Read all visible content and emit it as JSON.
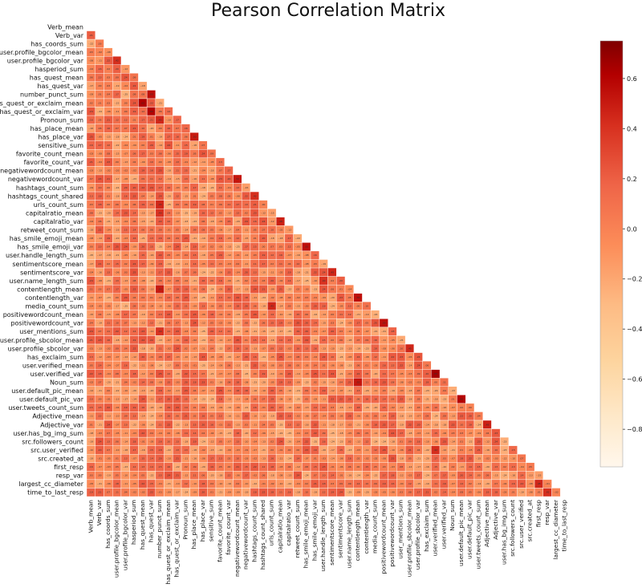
{
  "chart_data": {
    "type": "heatmap",
    "title": "Pearson Correlation Matrix",
    "mask": "upper-triangle",
    "annotated": true,
    "variables": [
      "Verb_mean",
      "Verb_var",
      "has_coords_sum",
      "user.profile_bgcolor_mean",
      "user.profile_bgcolor_var",
      "hasperiod_sum",
      "has_quest_mean",
      "has_quest_var",
      "number_punct_sum",
      "has_quest_or_exclaim_mean",
      "has_quest_or_exclaim_var",
      "Pronoun_sum",
      "has_place_mean",
      "has_place_var",
      "sensitive_sum",
      "favorite_count_mean",
      "favorite_count_var",
      "negativewordcount_mean",
      "negativewordcount_var",
      "hashtags_count_sum",
      "hashtags_count_shared",
      "urls_count_sum",
      "capitalratio_mean",
      "capitalratio_var",
      "retweet_count_sum",
      "has_smile_emoji_mean",
      "has_smile_emoji_var",
      "user.handle_length_sum",
      "sentimentscore_mean",
      "sentimentscore_var",
      "user.name_length_sum",
      "contentlength_mean",
      "contentlength_var",
      "media_count_sum",
      "positivewordcount_mean",
      "positivewordcount_var",
      "user_mentions_sum",
      "user.profile_sbcolor_mean",
      "user.profile_sbcolor_var",
      "has_exclaim_sum",
      "user.verified_mean",
      "user.verified_var",
      "Noun_sum",
      "user.default_pic_mean",
      "user.default_pic_var",
      "user.tweets_count_sum",
      "Adjective_mean",
      "Adjective_var",
      "user.has_bg_img_sum",
      "src.followers_count",
      "src.user_verified",
      "src.created_at",
      "first_resp",
      "resp_var",
      "largest_cc_diameter",
      "time_to_last_resp"
    ],
    "colorbar": {
      "colormap": "OrRd",
      "range": [
        -0.95,
        0.75
      ],
      "ticks": [
        0.6,
        0.4,
        0.2,
        0.0,
        -0.2,
        -0.4,
        -0.6,
        -0.8
      ],
      "tick_labels": [
        "0.6",
        "0.4",
        "0.2",
        "0.0",
        "−0.2",
        "−0.4",
        "−0.6",
        "−0.8"
      ]
    },
    "strong_pairs": [
      {
        "a": "user.profile_bgcolor_var",
        "b": "user.profile_bgcolor_mean",
        "value": 0.42
      },
      {
        "a": "number_punct_sum",
        "b": "has_quest_var",
        "value": 0.55
      },
      {
        "a": "has_quest_or_exclaim_mean",
        "b": "has_quest_mean",
        "value": 0.62
      },
      {
        "a": "has_quest_or_exclaim_var",
        "b": "has_quest_var",
        "value": 0.6
      },
      {
        "a": "Pronoun_sum",
        "b": "number_punct_sum",
        "value": 0.45
      },
      {
        "a": "has_place_var",
        "b": "has_place_mean",
        "value": 0.5
      },
      {
        "a": "negativewordcount_var",
        "b": "negativewordcount_mean",
        "value": 0.52
      },
      {
        "a": "hashtags_count_shared",
        "b": "hashtags_count_sum",
        "value": 0.42
      },
      {
        "a": "urls_count_sum",
        "b": "number_punct_sum",
        "value": 0.45
      },
      {
        "a": "capitalratio_mean",
        "b": "number_punct_sum",
        "value": 0.4
      },
      {
        "a": "capitalratio_var",
        "b": "capitalratio_mean",
        "value": 0.48
      },
      {
        "a": "has_smile_emoji_var",
        "b": "has_smile_emoji_mean",
        "value": 0.55
      },
      {
        "a": "user.handle_length_sum",
        "b": "user.name_length_sum",
        "value": 0.4
      },
      {
        "a": "sentimentscore_var",
        "b": "sentimentscore_mean",
        "value": 0.45
      },
      {
        "a": "contentlength_mean",
        "b": "number_punct_sum",
        "value": 0.5
      },
      {
        "a": "contentlength_var",
        "b": "contentlength_mean",
        "value": 0.55
      },
      {
        "a": "media_count_sum",
        "b": "urls_count_sum",
        "value": 0.45
      },
      {
        "a": "positivewordcount_var",
        "b": "positivewordcount_mean",
        "value": 0.55
      },
      {
        "a": "user_mentions_sum",
        "b": "number_punct_sum",
        "value": 0.4
      },
      {
        "a": "user.profile_sbcolor_var",
        "b": "user.profile_sbcolor_mean",
        "value": 0.45
      },
      {
        "a": "user.verified_var",
        "b": "user.verified_mean",
        "value": 0.65
      },
      {
        "a": "Noun_sum",
        "b": "contentlength_mean",
        "value": 0.52
      },
      {
        "a": "user.default_pic_var",
        "b": "user.default_pic_mean",
        "value": 0.6
      },
      {
        "a": "Adjective_var",
        "b": "Adjective_mean",
        "value": 0.48
      },
      {
        "a": "src.user_verified",
        "b": "user.verified_mean",
        "value": 0.42
      },
      {
        "a": "largest_cc_diameter",
        "b": "first_resp",
        "value": 0.45
      },
      {
        "a": "time_to_last_resp",
        "b": "resp_var",
        "value": 0.42
      }
    ]
  }
}
